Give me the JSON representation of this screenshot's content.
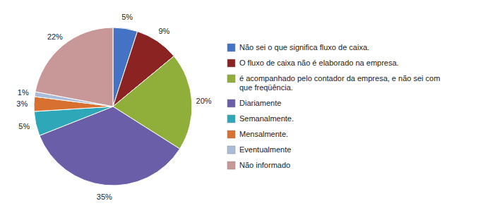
{
  "chart_data": {
    "type": "pie",
    "categories": [
      "Não sei o que significa fluxo de caixa.",
      "O fluxo de caixa não é elaborado na empresa.",
      "é acompanhado pelo contador da empresa, e não sei com\nque freqüência.",
      "Diariamente",
      "Semanalmente.",
      "Mensalmente.",
      "Eventualmente",
      "Não informado"
    ],
    "values": [
      5,
      9,
      20,
      35,
      5,
      3,
      1,
      22
    ],
    "value_labels": [
      "5%",
      "9%",
      "20%",
      "35%",
      "5%",
      "3%",
      "1%",
      "22%"
    ],
    "colors": [
      "#4472C4",
      "#8B2323",
      "#8FAF3A",
      "#6B5EA8",
      "#2EA8B8",
      "#D87030",
      "#AABCD8",
      "#C89898"
    ],
    "data_labels": true,
    "legend": "right"
  }
}
